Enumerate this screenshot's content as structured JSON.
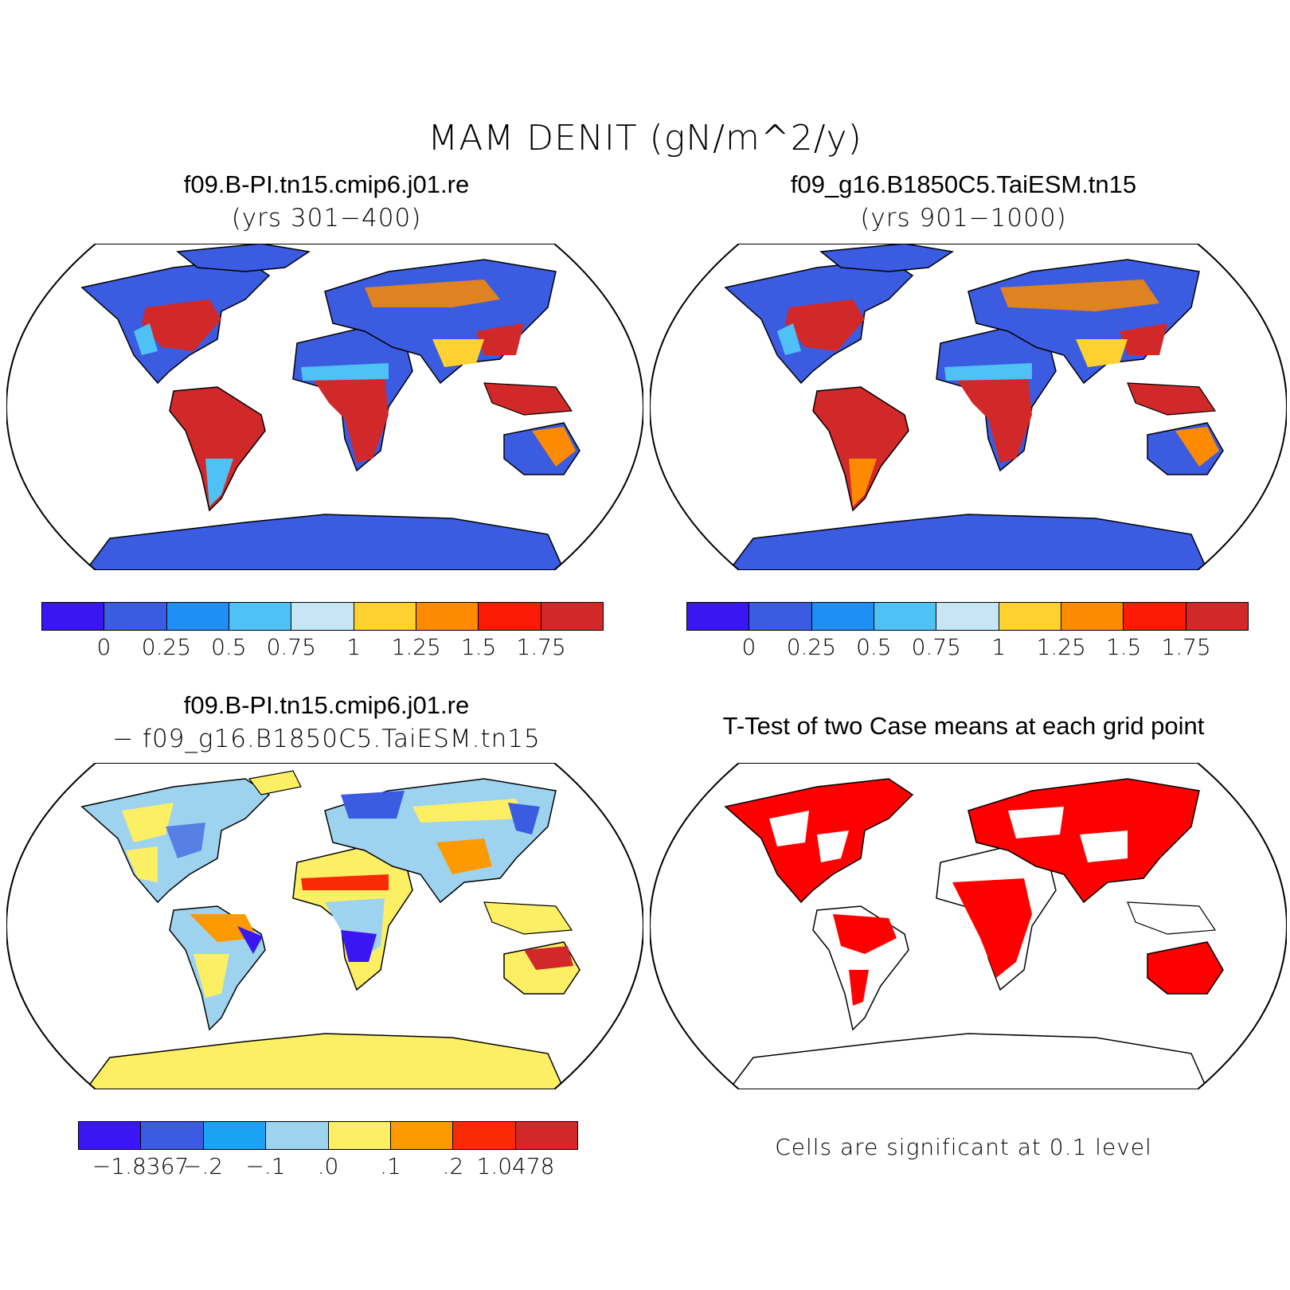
{
  "figure": {
    "title": "MAM DENIT (gN/m^2/y)"
  },
  "panels": [
    {
      "title": "f09.B-PI.tn15.cmip6.j01.re",
      "subtitle": "(yrs 301−400)",
      "colorbar": {
        "colors": [
          "#3a17f2",
          "#3b5be0",
          "#1e90f5",
          "#4fc1f5",
          "#c6e6f6",
          "#fdd230",
          "#fd8a00",
          "#fb1b06",
          "#d1292a"
        ],
        "ticks": [
          "0",
          "0.25",
          "0.5",
          "0.75",
          "1",
          "1.25",
          "1.5",
          "1.75"
        ]
      }
    },
    {
      "title": "f09_g16.B1850C5.TaiESM.tn15",
      "subtitle": "(yrs 901−1000)",
      "colorbar": {
        "colors": [
          "#3a17f2",
          "#3b5be0",
          "#1e90f5",
          "#4fc1f5",
          "#c6e6f6",
          "#fdd230",
          "#fd8a00",
          "#fb1b06",
          "#d1292a"
        ],
        "ticks": [
          "0",
          "0.25",
          "0.5",
          "0.75",
          "1",
          "1.25",
          "1.5",
          "1.75"
        ]
      }
    },
    {
      "title": "f09.B-PI.tn15.cmip6.j01.re",
      "subtitle": "− f09_g16.B1850C5.TaiESM.tn15",
      "colorbar": {
        "colors": [
          "#3a17f2",
          "#3b5be0",
          "#1aa3f5",
          "#9ed3ef",
          "#fdef64",
          "#fd9a00",
          "#fb2a06",
          "#d1292a"
        ],
        "ticks": [
          "−1.8367",
          "−.2",
          "−.1",
          ".0",
          ".1",
          ".2",
          "1.0478"
        ]
      }
    },
    {
      "title": "T-Test of two Case means at each grid point",
      "note": "Cells are significant at 0.1 level",
      "signif_color": "#ff0000"
    }
  ]
}
